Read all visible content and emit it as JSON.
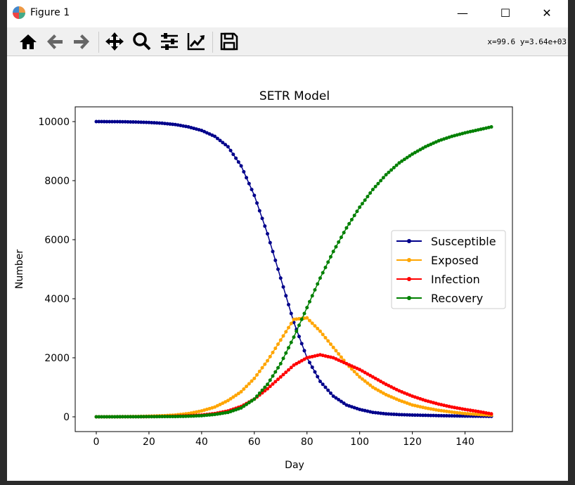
{
  "window": {
    "title": "Figure 1",
    "minimize": "—",
    "maximize": "☐",
    "close": "✕"
  },
  "toolbar": {
    "buttons": [
      "home-icon",
      "back-icon",
      "forward-icon",
      "pan-icon",
      "zoom-icon",
      "configure-subplots-icon",
      "edit-axis-icon",
      "save-icon"
    ],
    "coords": "x=99.6 y=3.64e+03"
  },
  "chart_data": {
    "type": "line",
    "title": "SETR Model",
    "xlabel": "Day",
    "ylabel": "Number",
    "xlim": [
      -8,
      158
    ],
    "ylim": [
      -500,
      10500
    ],
    "xticks": [
      0,
      20,
      40,
      60,
      80,
      100,
      120,
      140
    ],
    "yticks": [
      0,
      2000,
      4000,
      6000,
      8000,
      10000
    ],
    "legend_position": "center-right",
    "x": [
      0,
      5,
      10,
      15,
      20,
      25,
      30,
      35,
      40,
      45,
      50,
      55,
      60,
      65,
      70,
      75,
      80,
      85,
      90,
      95,
      100,
      105,
      110,
      115,
      120,
      125,
      130,
      135,
      140,
      145,
      150
    ],
    "series": [
      {
        "name": "Susceptible",
        "color": "#00008b",
        "values": [
          10000,
          9998,
          9995,
          9985,
          9970,
          9945,
          9900,
          9820,
          9700,
          9500,
          9150,
          8500,
          7500,
          6200,
          4700,
          3200,
          2000,
          1200,
          700,
          400,
          250,
          150,
          100,
          75,
          60,
          50,
          40,
          32,
          25,
          20,
          15
        ]
      },
      {
        "name": "Exposed",
        "color": "#ffa500",
        "values": [
          0,
          2,
          5,
          10,
          20,
          35,
          60,
          110,
          200,
          330,
          550,
          850,
          1300,
          1900,
          2600,
          3300,
          3350,
          2900,
          2350,
          1800,
          1350,
          1000,
          750,
          560,
          400,
          300,
          220,
          160,
          110,
          80,
          55
        ]
      },
      {
        "name": "Infection",
        "color": "#ff0000",
        "values": [
          0,
          1,
          2,
          3,
          5,
          10,
          20,
          35,
          60,
          110,
          200,
          350,
          600,
          950,
          1350,
          1750,
          2000,
          2100,
          2000,
          1800,
          1600,
          1350,
          1100,
          880,
          700,
          550,
          430,
          330,
          250,
          180,
          100
        ]
      },
      {
        "name": "Recovery",
        "color": "#008000",
        "values": [
          0,
          1,
          2,
          4,
          6,
          8,
          10,
          20,
          40,
          80,
          150,
          300,
          600,
          1100,
          1800,
          2700,
          3700,
          4700,
          5600,
          6400,
          7100,
          7700,
          8200,
          8600,
          8900,
          9150,
          9350,
          9500,
          9620,
          9720,
          9820
        ]
      }
    ]
  }
}
